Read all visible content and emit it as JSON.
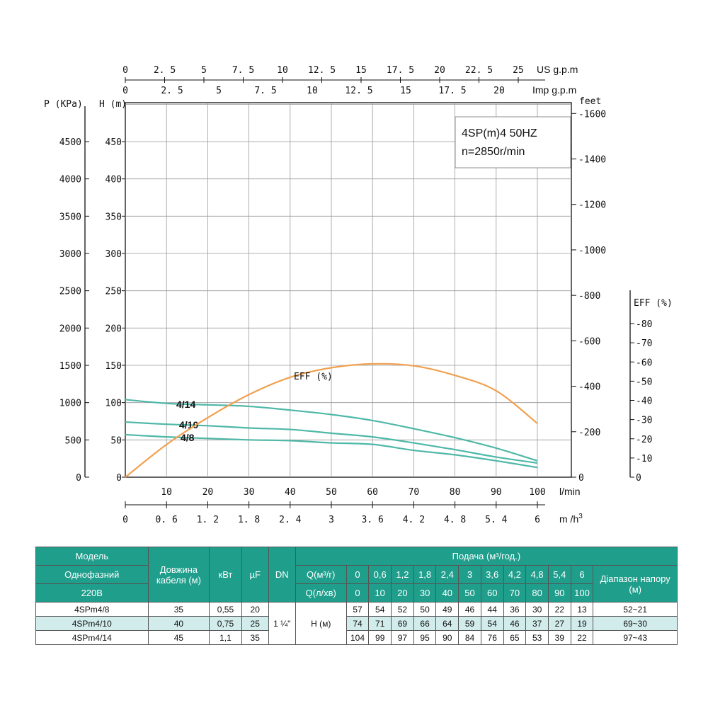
{
  "chart_data": {
    "type": "line",
    "info_box": [
      "4SP(m)4  50HZ",
      "n=2850r/min"
    ],
    "axes": {
      "pressure": {
        "title": "P (KPa)",
        "ticks": [
          0,
          500,
          1000,
          1500,
          2000,
          2500,
          3000,
          3500,
          4000,
          4500
        ]
      },
      "head": {
        "title": "H (m)",
        "ticks": [
          0,
          50,
          100,
          150,
          200,
          250,
          300,
          350,
          400,
          450
        ],
        "ylim": [
          0,
          500
        ]
      },
      "feet": {
        "title": "feet",
        "ticks": [
          0,
          200,
          400,
          600,
          800,
          1000,
          1200,
          1400,
          1600
        ]
      },
      "eff": {
        "title": "EFF (%)",
        "ticks": [
          0,
          10,
          20,
          30,
          40,
          50,
          60,
          70,
          80
        ]
      },
      "flow_lmin": {
        "title": "l/min",
        "ticks": [
          10,
          20,
          30,
          40,
          50,
          60,
          70,
          80,
          90,
          100
        ],
        "xlim": [
          0,
          100
        ]
      },
      "flow_m3h": {
        "title": "m /h",
        "sup": "3",
        "ticks": [
          "0",
          "0. 6",
          "1. 2",
          "1. 8",
          "2. 4",
          "3",
          "3. 6",
          "4. 2",
          "4. 8",
          "5. 4",
          "6"
        ]
      },
      "us_gpm": {
        "title": "US g.p.m",
        "ticks": [
          "0",
          "2. 5",
          "5",
          "7. 5",
          "10",
          "12. 5",
          "15",
          "17. 5",
          "20",
          "22. 5",
          "25"
        ]
      },
      "imp_gpm": {
        "title": "Imp g.p.m",
        "ticks": [
          "0",
          "2. 5",
          "5",
          "7. 5",
          "10",
          "12. 5",
          "15",
          "17. 5",
          "20"
        ]
      }
    },
    "x": [
      0,
      10,
      20,
      30,
      40,
      50,
      60,
      70,
      80,
      90,
      100
    ],
    "series": [
      {
        "name": "4/8",
        "color": "#4fb8a8",
        "values": [
          57,
          54,
          52,
          50,
          49,
          46,
          44,
          36,
          30,
          22,
          13
        ]
      },
      {
        "name": "4/10",
        "color": "#4fb8a8",
        "values": [
          74,
          71,
          69,
          66,
          64,
          59,
          54,
          46,
          37,
          27,
          19
        ]
      },
      {
        "name": "4/14",
        "color": "#4fb8a8",
        "values": [
          104,
          99,
          97,
          95,
          90,
          84,
          76,
          65,
          53,
          39,
          22
        ]
      },
      {
        "name": "EFF (%)",
        "color": "#f0a050",
        "values": [
          0,
          17,
          31,
          43,
          52,
          57,
          59,
          58,
          53,
          45,
          28
        ]
      }
    ]
  },
  "table": {
    "col_model_h1": "Модель",
    "col_model_h2": "Однофазний",
    "col_model_h3": "220В",
    "col_cable_h": "Довжина кабеля (м)",
    "col_kw_h": "кВт",
    "col_uf_h": "µF",
    "col_dn_h": "DN",
    "supply_h": "Подача (м³/год.)",
    "q_m3_label": "Q(м³/г)",
    "q_lmin_label": "Q(л/хв)",
    "q_m3": [
      "0",
      "0,6",
      "1,2",
      "1,8",
      "2,4",
      "3",
      "3,6",
      "4,2",
      "4,8",
      "5,4",
      "6"
    ],
    "q_lmin": [
      "0",
      "10",
      "20",
      "30",
      "40",
      "50",
      "60",
      "70",
      "80",
      "90",
      "100"
    ],
    "range_h": "Діапазон напору (м)",
    "dn_value": "1 ¼\"",
    "h_label": "H (м)",
    "rows": [
      {
        "model": "4SPm4/8",
        "cable": "35",
        "kw": "0,55",
        "uf": "20",
        "h": [
          "57",
          "54",
          "52",
          "50",
          "49",
          "46",
          "44",
          "36",
          "30",
          "22",
          "13"
        ],
        "range": "52~21"
      },
      {
        "model": "4SPm4/10",
        "cable": "40",
        "kw": "0,75",
        "uf": "25",
        "h": [
          "74",
          "71",
          "69",
          "66",
          "64",
          "59",
          "54",
          "46",
          "37",
          "27",
          "19"
        ],
        "range": "69~30"
      },
      {
        "model": "4SPm4/14",
        "cable": "45",
        "kw": "1,1",
        "uf": "35",
        "h": [
          "104",
          "99",
          "97",
          "95",
          "90",
          "84",
          "76",
          "65",
          "53",
          "39",
          "22"
        ],
        "range": "97~43"
      }
    ]
  }
}
